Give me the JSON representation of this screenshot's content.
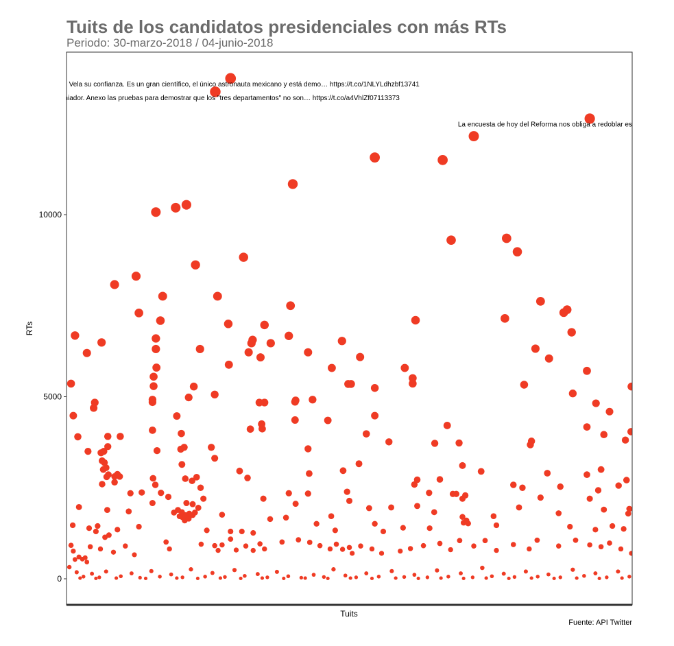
{
  "page": {
    "title": "Tuits de los candidatos presidenciales con más RTs",
    "subtitle": "Periodo: 30-marzo-2018 / 04-junio-2018",
    "caption": "Fuente: API Twitter"
  },
  "colors": {
    "point": "#ef3b24",
    "panel_border": "#333333",
    "text_muted": "#6b6b6b"
  },
  "chart_data": {
    "type": "scatter",
    "xlabel": "Tuits",
    "ylabel": "RTs",
    "ylim": [
      -600,
      13600
    ],
    "xlim": [
      0,
      1000
    ],
    "yticks": [
      0,
      5000,
      10000
    ],
    "ytick_labels": [
      "0",
      "5000",
      "10000"
    ],
    "grid": false,
    "annotations": [
      {
        "x": 290,
        "y": 13600,
        "text": "olfo Neri Vela su confianza. Es un gran científico, el único astronauta mexicano y está demo… https://t.co/1NLYLdhzbf13741"
      },
      {
        "x": 263,
        "y": 13220,
        "text": "s un calumniador. Anexo las pruebas para demostrar que los \"tres departamentos\" no son… https://t.co/a4VhlZf07113373"
      },
      {
        "x": 925,
        "y": 12500,
        "text": "La encuesta de hoy del Reforma nos obliga a redoblar esfuerzos. No aflojar el paso. Vi"
      }
    ],
    "points": [
      {
        "x": 290,
        "y": 13741
      },
      {
        "x": 263,
        "y": 13373
      },
      {
        "x": 925,
        "y": 12637
      },
      {
        "x": 720,
        "y": 12155
      },
      {
        "x": 545,
        "y": 11570
      },
      {
        "x": 665,
        "y": 11500
      },
      {
        "x": 400,
        "y": 10840
      },
      {
        "x": 212,
        "y": 10270
      },
      {
        "x": 193,
        "y": 10190
      },
      {
        "x": 158,
        "y": 10070
      },
      {
        "x": 680,
        "y": 9300
      },
      {
        "x": 778,
        "y": 9350
      },
      {
        "x": 797,
        "y": 8980
      },
      {
        "x": 313,
        "y": 8830
      },
      {
        "x": 228,
        "y": 8620
      },
      {
        "x": 123,
        "y": 8310
      },
      {
        "x": 85,
        "y": 8080
      },
      {
        "x": 170,
        "y": 7760
      },
      {
        "x": 267,
        "y": 7760
      },
      {
        "x": 396,
        "y": 7500
      },
      {
        "x": 838,
        "y": 7620
      },
      {
        "x": 885,
        "y": 7390
      },
      {
        "x": 879,
        "y": 7310
      },
      {
        "x": 128,
        "y": 7300
      },
      {
        "x": 166,
        "y": 7090
      },
      {
        "x": 617,
        "y": 7100
      },
      {
        "x": 775,
        "y": 7150
      },
      {
        "x": 286,
        "y": 7000
      },
      {
        "x": 350,
        "y": 6970
      },
      {
        "x": 893,
        "y": 6770
      },
      {
        "x": 15,
        "y": 6680
      },
      {
        "x": 393,
        "y": 6670
      },
      {
        "x": 158,
        "y": 6600
      },
      {
        "x": 62,
        "y": 6490
      },
      {
        "x": 329,
        "y": 6560
      },
      {
        "x": 327,
        "y": 6470
      },
      {
        "x": 361,
        "y": 6470
      },
      {
        "x": 487,
        "y": 6530
      },
      {
        "x": 36,
        "y": 6200
      },
      {
        "x": 158,
        "y": 6310
      },
      {
        "x": 236,
        "y": 6310
      },
      {
        "x": 322,
        "y": 6220
      },
      {
        "x": 427,
        "y": 6220
      },
      {
        "x": 829,
        "y": 6320
      },
      {
        "x": 853,
        "y": 6050
      },
      {
        "x": 343,
        "y": 6080
      },
      {
        "x": 519,
        "y": 6090
      },
      {
        "x": 159,
        "y": 5800
      },
      {
        "x": 287,
        "y": 5880
      },
      {
        "x": 469,
        "y": 5790
      },
      {
        "x": 598,
        "y": 5790
      },
      {
        "x": 920,
        "y": 5710
      },
      {
        "x": 154,
        "y": 5550
      },
      {
        "x": 612,
        "y": 5510
      },
      {
        "x": 8,
        "y": 5360
      },
      {
        "x": 154,
        "y": 5290
      },
      {
        "x": 225,
        "y": 5280
      },
      {
        "x": 498,
        "y": 5350
      },
      {
        "x": 503,
        "y": 5350
      },
      {
        "x": 612,
        "y": 5360
      },
      {
        "x": 809,
        "y": 5330
      },
      {
        "x": 1000,
        "y": 5280
      },
      {
        "x": 545,
        "y": 5240
      },
      {
        "x": 262,
        "y": 5060
      },
      {
        "x": 216,
        "y": 4980
      },
      {
        "x": 895,
        "y": 5090
      },
      {
        "x": 152,
        "y": 4920
      },
      {
        "x": 152,
        "y": 4850
      },
      {
        "x": 405,
        "y": 4900
      },
      {
        "x": 435,
        "y": 4920
      },
      {
        "x": 50,
        "y": 4840
      },
      {
        "x": 48,
        "y": 4690
      },
      {
        "x": 341,
        "y": 4840
      },
      {
        "x": 350,
        "y": 4840
      },
      {
        "x": 936,
        "y": 4820
      },
      {
        "x": 404,
        "y": 4860
      },
      {
        "x": 12,
        "y": 4480
      },
      {
        "x": 195,
        "y": 4470
      },
      {
        "x": 545,
        "y": 4480
      },
      {
        "x": 960,
        "y": 4590
      },
      {
        "x": 404,
        "y": 4360
      },
      {
        "x": 462,
        "y": 4350
      },
      {
        "x": 345,
        "y": 4250
      },
      {
        "x": 325,
        "y": 4110
      },
      {
        "x": 346,
        "y": 4120
      },
      {
        "x": 920,
        "y": 4170
      },
      {
        "x": 673,
        "y": 4210
      },
      {
        "x": 152,
        "y": 4080
      },
      {
        "x": 20,
        "y": 3900
      },
      {
        "x": 73,
        "y": 3910
      },
      {
        "x": 95,
        "y": 3910
      },
      {
        "x": 203,
        "y": 3990
      },
      {
        "x": 530,
        "y": 3980
      },
      {
        "x": 950,
        "y": 3960
      },
      {
        "x": 998,
        "y": 4040
      },
      {
        "x": 988,
        "y": 3810
      },
      {
        "x": 822,
        "y": 3780
      },
      {
        "x": 820,
        "y": 3680
      },
      {
        "x": 570,
        "y": 3760
      },
      {
        "x": 651,
        "y": 3720
      },
      {
        "x": 694,
        "y": 3730
      },
      {
        "x": 73,
        "y": 3630
      },
      {
        "x": 61,
        "y": 3460
      },
      {
        "x": 66,
        "y": 3500
      },
      {
        "x": 63,
        "y": 3240
      },
      {
        "x": 67,
        "y": 3190
      },
      {
        "x": 70,
        "y": 3050
      },
      {
        "x": 65,
        "y": 3000
      },
      {
        "x": 38,
        "y": 3500
      },
      {
        "x": 160,
        "y": 3520
      },
      {
        "x": 202,
        "y": 3560
      },
      {
        "x": 208,
        "y": 3610
      },
      {
        "x": 256,
        "y": 3610
      },
      {
        "x": 427,
        "y": 3570
      },
      {
        "x": 262,
        "y": 3310
      },
      {
        "x": 517,
        "y": 3160
      },
      {
        "x": 700,
        "y": 3110
      },
      {
        "x": 204,
        "y": 3140
      },
      {
        "x": 306,
        "y": 2960
      },
      {
        "x": 489,
        "y": 2970
      },
      {
        "x": 733,
        "y": 2950
      },
      {
        "x": 850,
        "y": 2900
      },
      {
        "x": 945,
        "y": 3000
      },
      {
        "x": 74,
        "y": 2860
      },
      {
        "x": 85,
        "y": 2810
      },
      {
        "x": 90,
        "y": 2870
      },
      {
        "x": 71,
        "y": 2800
      },
      {
        "x": 63,
        "y": 2600
      },
      {
        "x": 94,
        "y": 2810
      },
      {
        "x": 210,
        "y": 2750
      },
      {
        "x": 230,
        "y": 2790
      },
      {
        "x": 320,
        "y": 2770
      },
      {
        "x": 429,
        "y": 2890
      },
      {
        "x": 620,
        "y": 2720
      },
      {
        "x": 660,
        "y": 2730
      },
      {
        "x": 153,
        "y": 2760
      },
      {
        "x": 222,
        "y": 2690
      },
      {
        "x": 920,
        "y": 2860
      },
      {
        "x": 990,
        "y": 2710
      },
      {
        "x": 940,
        "y": 2430
      },
      {
        "x": 976,
        "y": 2560
      },
      {
        "x": 85,
        "y": 2650
      },
      {
        "x": 157,
        "y": 2580
      },
      {
        "x": 237,
        "y": 2500
      },
      {
        "x": 615,
        "y": 2590
      },
      {
        "x": 790,
        "y": 2580
      },
      {
        "x": 806,
        "y": 2500
      },
      {
        "x": 873,
        "y": 2530
      },
      {
        "x": 113,
        "y": 2350
      },
      {
        "x": 133,
        "y": 2370
      },
      {
        "x": 167,
        "y": 2360
      },
      {
        "x": 393,
        "y": 2350
      },
      {
        "x": 427,
        "y": 2340
      },
      {
        "x": 496,
        "y": 2390
      },
      {
        "x": 641,
        "y": 2360
      },
      {
        "x": 683,
        "y": 2330
      },
      {
        "x": 689,
        "y": 2330
      },
      {
        "x": 838,
        "y": 2230
      },
      {
        "x": 180,
        "y": 2250
      },
      {
        "x": 242,
        "y": 2200
      },
      {
        "x": 348,
        "y": 2200
      },
      {
        "x": 500,
        "y": 2140
      },
      {
        "x": 700,
        "y": 2200
      },
      {
        "x": 705,
        "y": 2290
      },
      {
        "x": 925,
        "y": 2200
      },
      {
        "x": 22,
        "y": 1970
      },
      {
        "x": 72,
        "y": 1890
      },
      {
        "x": 152,
        "y": 2080
      },
      {
        "x": 197,
        "y": 1890
      },
      {
        "x": 204,
        "y": 1830
      },
      {
        "x": 210,
        "y": 1750
      },
      {
        "x": 200,
        "y": 1720
      },
      {
        "x": 216,
        "y": 1650
      },
      {
        "x": 223,
        "y": 1750
      },
      {
        "x": 227,
        "y": 1820
      },
      {
        "x": 190,
        "y": 1820
      },
      {
        "x": 233,
        "y": 1950
      },
      {
        "x": 223,
        "y": 2050
      },
      {
        "x": 212,
        "y": 2080
      },
      {
        "x": 217,
        "y": 1790
      },
      {
        "x": 205,
        "y": 1690
      },
      {
        "x": 209,
        "y": 1600
      },
      {
        "x": 405,
        "y": 2060
      },
      {
        "x": 535,
        "y": 1940
      },
      {
        "x": 574,
        "y": 1960
      },
      {
        "x": 620,
        "y": 2000
      },
      {
        "x": 650,
        "y": 1830
      },
      {
        "x": 700,
        "y": 1700
      },
      {
        "x": 707,
        "y": 1600
      },
      {
        "x": 702,
        "y": 1540
      },
      {
        "x": 710,
        "y": 1520
      },
      {
        "x": 755,
        "y": 1720
      },
      {
        "x": 800,
        "y": 1960
      },
      {
        "x": 870,
        "y": 1800
      },
      {
        "x": 950,
        "y": 1900
      },
      {
        "x": 995,
        "y": 1920
      },
      {
        "x": 993,
        "y": 1790
      },
      {
        "x": 965,
        "y": 1450
      },
      {
        "x": 110,
        "y": 1850
      },
      {
        "x": 275,
        "y": 1760
      },
      {
        "x": 360,
        "y": 1640
      },
      {
        "x": 388,
        "y": 1680
      },
      {
        "x": 442,
        "y": 1510
      },
      {
        "x": 468,
        "y": 1720
      },
      {
        "x": 545,
        "y": 1510
      },
      {
        "x": 55,
        "y": 1450
      },
      {
        "x": 52,
        "y": 1300
      },
      {
        "x": 40,
        "y": 1390
      },
      {
        "x": 11,
        "y": 1470
      },
      {
        "x": 68,
        "y": 1140
      },
      {
        "x": 75,
        "y": 1200
      },
      {
        "x": 90,
        "y": 1350
      },
      {
        "x": 128,
        "y": 1430
      },
      {
        "x": 248,
        "y": 1330
      },
      {
        "x": 290,
        "y": 1300
      },
      {
        "x": 310,
        "y": 1300
      },
      {
        "x": 330,
        "y": 1260
      },
      {
        "x": 475,
        "y": 1330
      },
      {
        "x": 560,
        "y": 1300
      },
      {
        "x": 595,
        "y": 1400
      },
      {
        "x": 642,
        "y": 1390
      },
      {
        "x": 760,
        "y": 1470
      },
      {
        "x": 890,
        "y": 1430
      },
      {
        "x": 935,
        "y": 1350
      },
      {
        "x": 985,
        "y": 1370
      },
      {
        "x": 8,
        "y": 920
      },
      {
        "x": 12,
        "y": 760
      },
      {
        "x": 15,
        "y": 530
      },
      {
        "x": 22,
        "y": 600
      },
      {
        "x": 28,
        "y": 540
      },
      {
        "x": 33,
        "y": 580
      },
      {
        "x": 36,
        "y": 460
      },
      {
        "x": 42,
        "y": 880
      },
      {
        "x": 60,
        "y": 820
      },
      {
        "x": 83,
        "y": 730
      },
      {
        "x": 104,
        "y": 900
      },
      {
        "x": 120,
        "y": 660
      },
      {
        "x": 176,
        "y": 1010
      },
      {
        "x": 182,
        "y": 820
      },
      {
        "x": 238,
        "y": 950
      },
      {
        "x": 262,
        "y": 910
      },
      {
        "x": 268,
        "y": 780
      },
      {
        "x": 275,
        "y": 930
      },
      {
        "x": 290,
        "y": 1090
      },
      {
        "x": 300,
        "y": 790
      },
      {
        "x": 317,
        "y": 900
      },
      {
        "x": 330,
        "y": 780
      },
      {
        "x": 342,
        "y": 960
      },
      {
        "x": 350,
        "y": 820
      },
      {
        "x": 381,
        "y": 1010
      },
      {
        "x": 410,
        "y": 1070
      },
      {
        "x": 430,
        "y": 1000
      },
      {
        "x": 448,
        "y": 910
      },
      {
        "x": 466,
        "y": 820
      },
      {
        "x": 477,
        "y": 950
      },
      {
        "x": 488,
        "y": 810
      },
      {
        "x": 500,
        "y": 860
      },
      {
        "x": 505,
        "y": 700
      },
      {
        "x": 520,
        "y": 900
      },
      {
        "x": 540,
        "y": 820
      },
      {
        "x": 557,
        "y": 700
      },
      {
        "x": 590,
        "y": 760
      },
      {
        "x": 608,
        "y": 830
      },
      {
        "x": 631,
        "y": 910
      },
      {
        "x": 660,
        "y": 970
      },
      {
        "x": 679,
        "y": 800
      },
      {
        "x": 695,
        "y": 1050
      },
      {
        "x": 720,
        "y": 900
      },
      {
        "x": 740,
        "y": 1050
      },
      {
        "x": 760,
        "y": 780
      },
      {
        "x": 790,
        "y": 940
      },
      {
        "x": 818,
        "y": 820
      },
      {
        "x": 832,
        "y": 1060
      },
      {
        "x": 870,
        "y": 900
      },
      {
        "x": 900,
        "y": 1060
      },
      {
        "x": 925,
        "y": 930
      },
      {
        "x": 945,
        "y": 880
      },
      {
        "x": 960,
        "y": 980
      },
      {
        "x": 980,
        "y": 820
      },
      {
        "x": 1000,
        "y": 700
      },
      {
        "x": 5,
        "y": 320
      },
      {
        "x": 18,
        "y": 180
      },
      {
        "x": 30,
        "y": 60
      },
      {
        "x": 45,
        "y": 140
      },
      {
        "x": 58,
        "y": 40
      },
      {
        "x": 70,
        "y": 200
      },
      {
        "x": 96,
        "y": 70
      },
      {
        "x": 115,
        "y": 150
      },
      {
        "x": 130,
        "y": 30
      },
      {
        "x": 150,
        "y": 210
      },
      {
        "x": 165,
        "y": 60
      },
      {
        "x": 185,
        "y": 120
      },
      {
        "x": 205,
        "y": 40
      },
      {
        "x": 220,
        "y": 260
      },
      {
        "x": 245,
        "y": 60
      },
      {
        "x": 258,
        "y": 160
      },
      {
        "x": 280,
        "y": 50
      },
      {
        "x": 297,
        "y": 240
      },
      {
        "x": 315,
        "y": 80
      },
      {
        "x": 338,
        "y": 130
      },
      {
        "x": 355,
        "y": 40
      },
      {
        "x": 372,
        "y": 190
      },
      {
        "x": 392,
        "y": 70
      },
      {
        "x": 415,
        "y": 30
      },
      {
        "x": 437,
        "y": 110
      },
      {
        "x": 455,
        "y": 50
      },
      {
        "x": 472,
        "y": 260
      },
      {
        "x": 493,
        "y": 90
      },
      {
        "x": 512,
        "y": 40
      },
      {
        "x": 530,
        "y": 150
      },
      {
        "x": 552,
        "y": 60
      },
      {
        "x": 575,
        "y": 210
      },
      {
        "x": 597,
        "y": 50
      },
      {
        "x": 615,
        "y": 110
      },
      {
        "x": 638,
        "y": 40
      },
      {
        "x": 655,
        "y": 230
      },
      {
        "x": 675,
        "y": 60
      },
      {
        "x": 697,
        "y": 150
      },
      {
        "x": 718,
        "y": 40
      },
      {
        "x": 735,
        "y": 300
      },
      {
        "x": 752,
        "y": 70
      },
      {
        "x": 773,
        "y": 140
      },
      {
        "x": 792,
        "y": 50
      },
      {
        "x": 812,
        "y": 200
      },
      {
        "x": 833,
        "y": 60
      },
      {
        "x": 852,
        "y": 120
      },
      {
        "x": 873,
        "y": 40
      },
      {
        "x": 895,
        "y": 250
      },
      {
        "x": 915,
        "y": 80
      },
      {
        "x": 935,
        "y": 150
      },
      {
        "x": 955,
        "y": 40
      },
      {
        "x": 975,
        "y": 200
      },
      {
        "x": 995,
        "y": 60
      },
      {
        "x": 24,
        "y": 20
      },
      {
        "x": 52,
        "y": 10
      },
      {
        "x": 88,
        "y": 20
      },
      {
        "x": 140,
        "y": 10
      },
      {
        "x": 195,
        "y": 20
      },
      {
        "x": 232,
        "y": 10
      },
      {
        "x": 272,
        "y": 20
      },
      {
        "x": 308,
        "y": 10
      },
      {
        "x": 346,
        "y": 20
      },
      {
        "x": 384,
        "y": 10
      },
      {
        "x": 422,
        "y": 20
      },
      {
        "x": 462,
        "y": 10
      },
      {
        "x": 502,
        "y": 20
      },
      {
        "x": 540,
        "y": 10
      },
      {
        "x": 582,
        "y": 20
      },
      {
        "x": 622,
        "y": 10
      },
      {
        "x": 662,
        "y": 20
      },
      {
        "x": 702,
        "y": 10
      },
      {
        "x": 742,
        "y": 20
      },
      {
        "x": 782,
        "y": 10
      },
      {
        "x": 822,
        "y": 20
      },
      {
        "x": 862,
        "y": 10
      },
      {
        "x": 902,
        "y": 20
      },
      {
        "x": 942,
        "y": 10
      },
      {
        "x": 982,
        "y": 20
      }
    ]
  }
}
